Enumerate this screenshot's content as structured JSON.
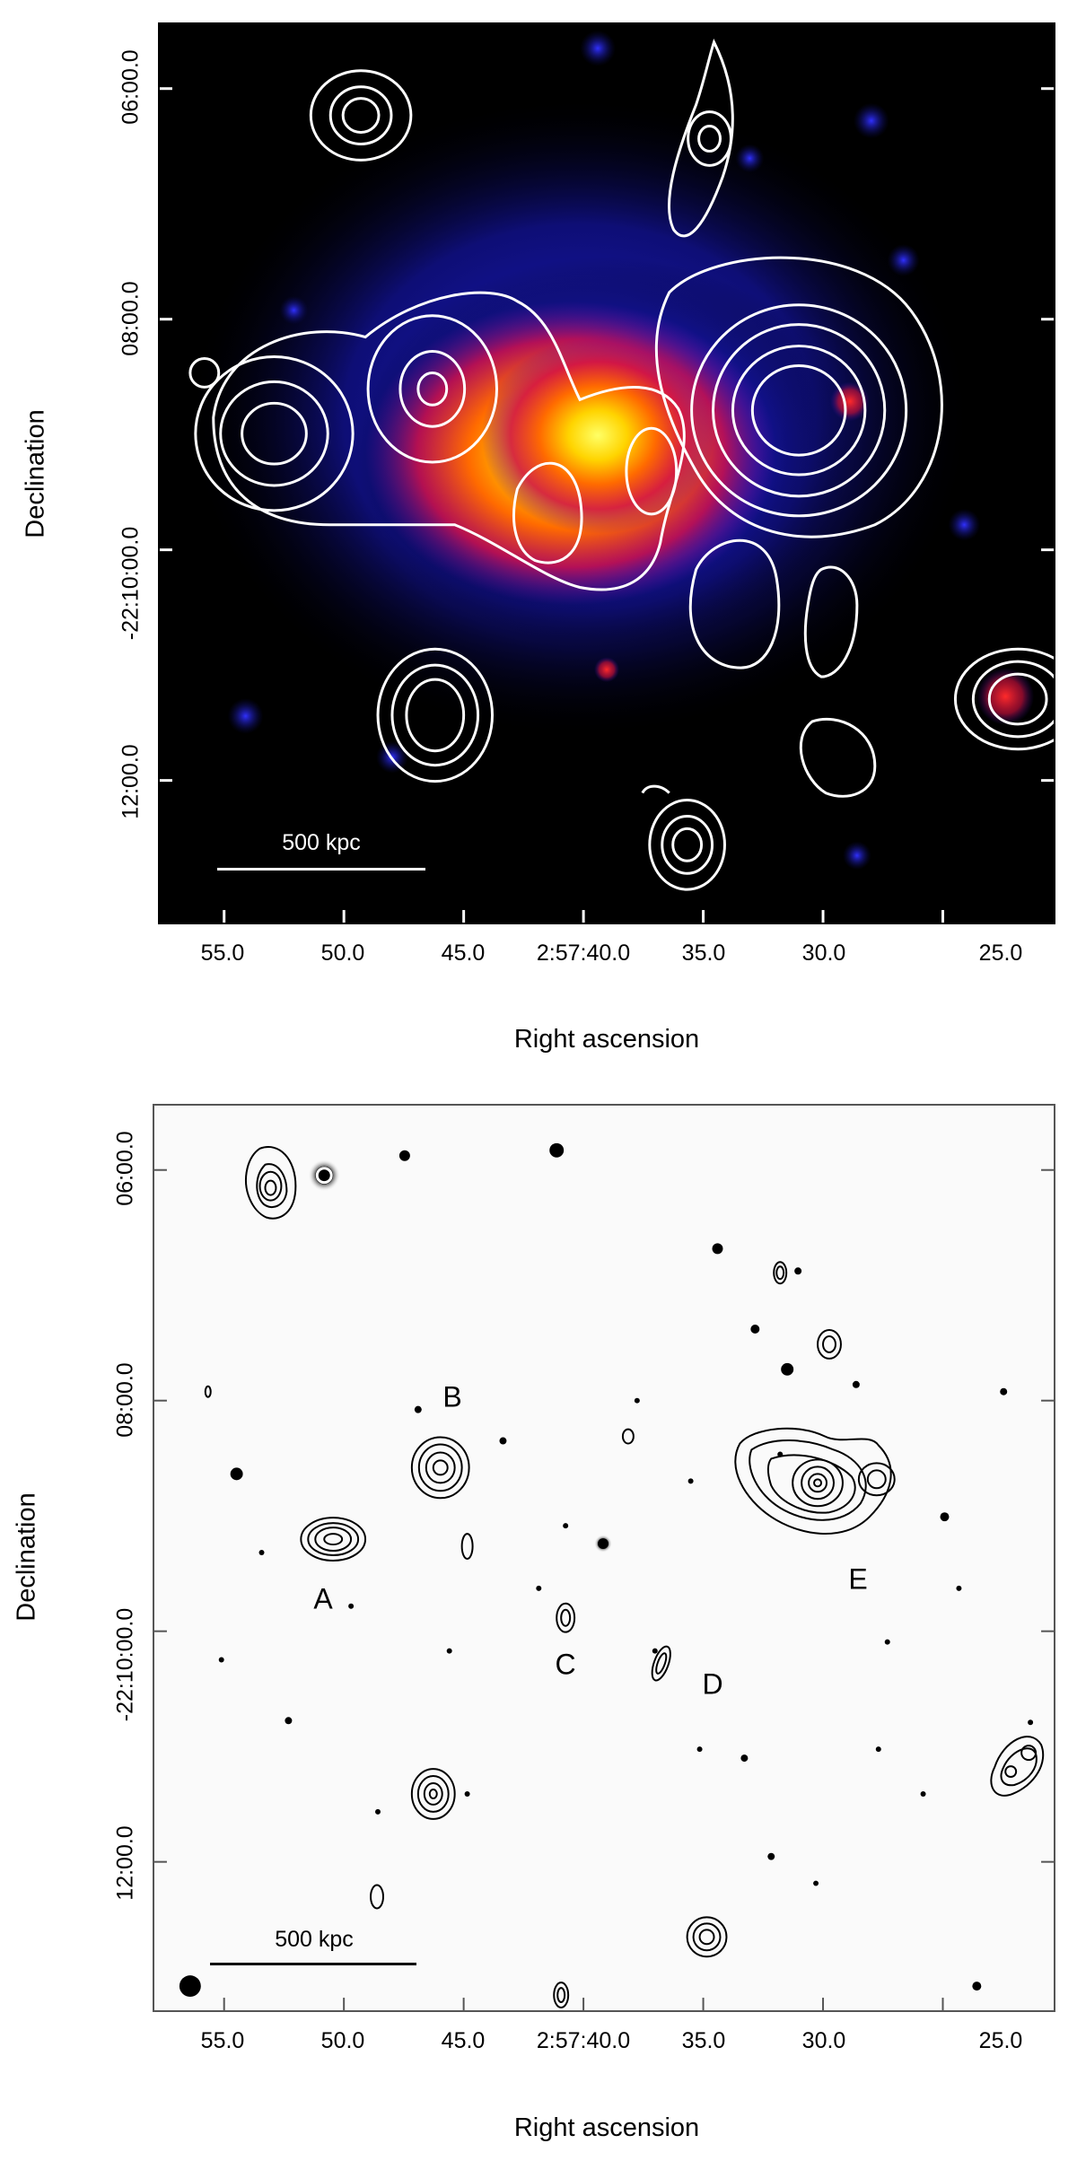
{
  "top_panel": {
    "x_ticks": [
      "55.0",
      "50.0",
      "45.0",
      "2:57:40.0",
      "35.0",
      "30.0",
      "25.0"
    ],
    "y_ticks": [
      "06:00.0",
      "08:00.0",
      "-22:10:00.0",
      "12:00.0"
    ],
    "xlabel": "Right ascension",
    "ylabel": "Declination",
    "scale_bar": "500 kpc",
    "colors": {
      "background": "#000000",
      "emission_low": "#1b1bd6",
      "emission_high": "#ffff33",
      "contour": "#ffffff"
    }
  },
  "bottom_panel": {
    "x_ticks": [
      "55.0",
      "50.0",
      "45.0",
      "2:57:40.0",
      "35.0",
      "30.0",
      "25.0"
    ],
    "y_ticks": [
      "06:00.0",
      "08:00.0",
      "-22:10:00.0",
      "12:00.0"
    ],
    "xlabel": "Right ascension",
    "ylabel": "Declination",
    "scale_bar": "500 kpc",
    "source_labels": [
      "A",
      "B",
      "C",
      "D",
      "E"
    ],
    "colors": {
      "background": "#ffffff",
      "stars": "#000000",
      "contour": "#000000"
    }
  }
}
